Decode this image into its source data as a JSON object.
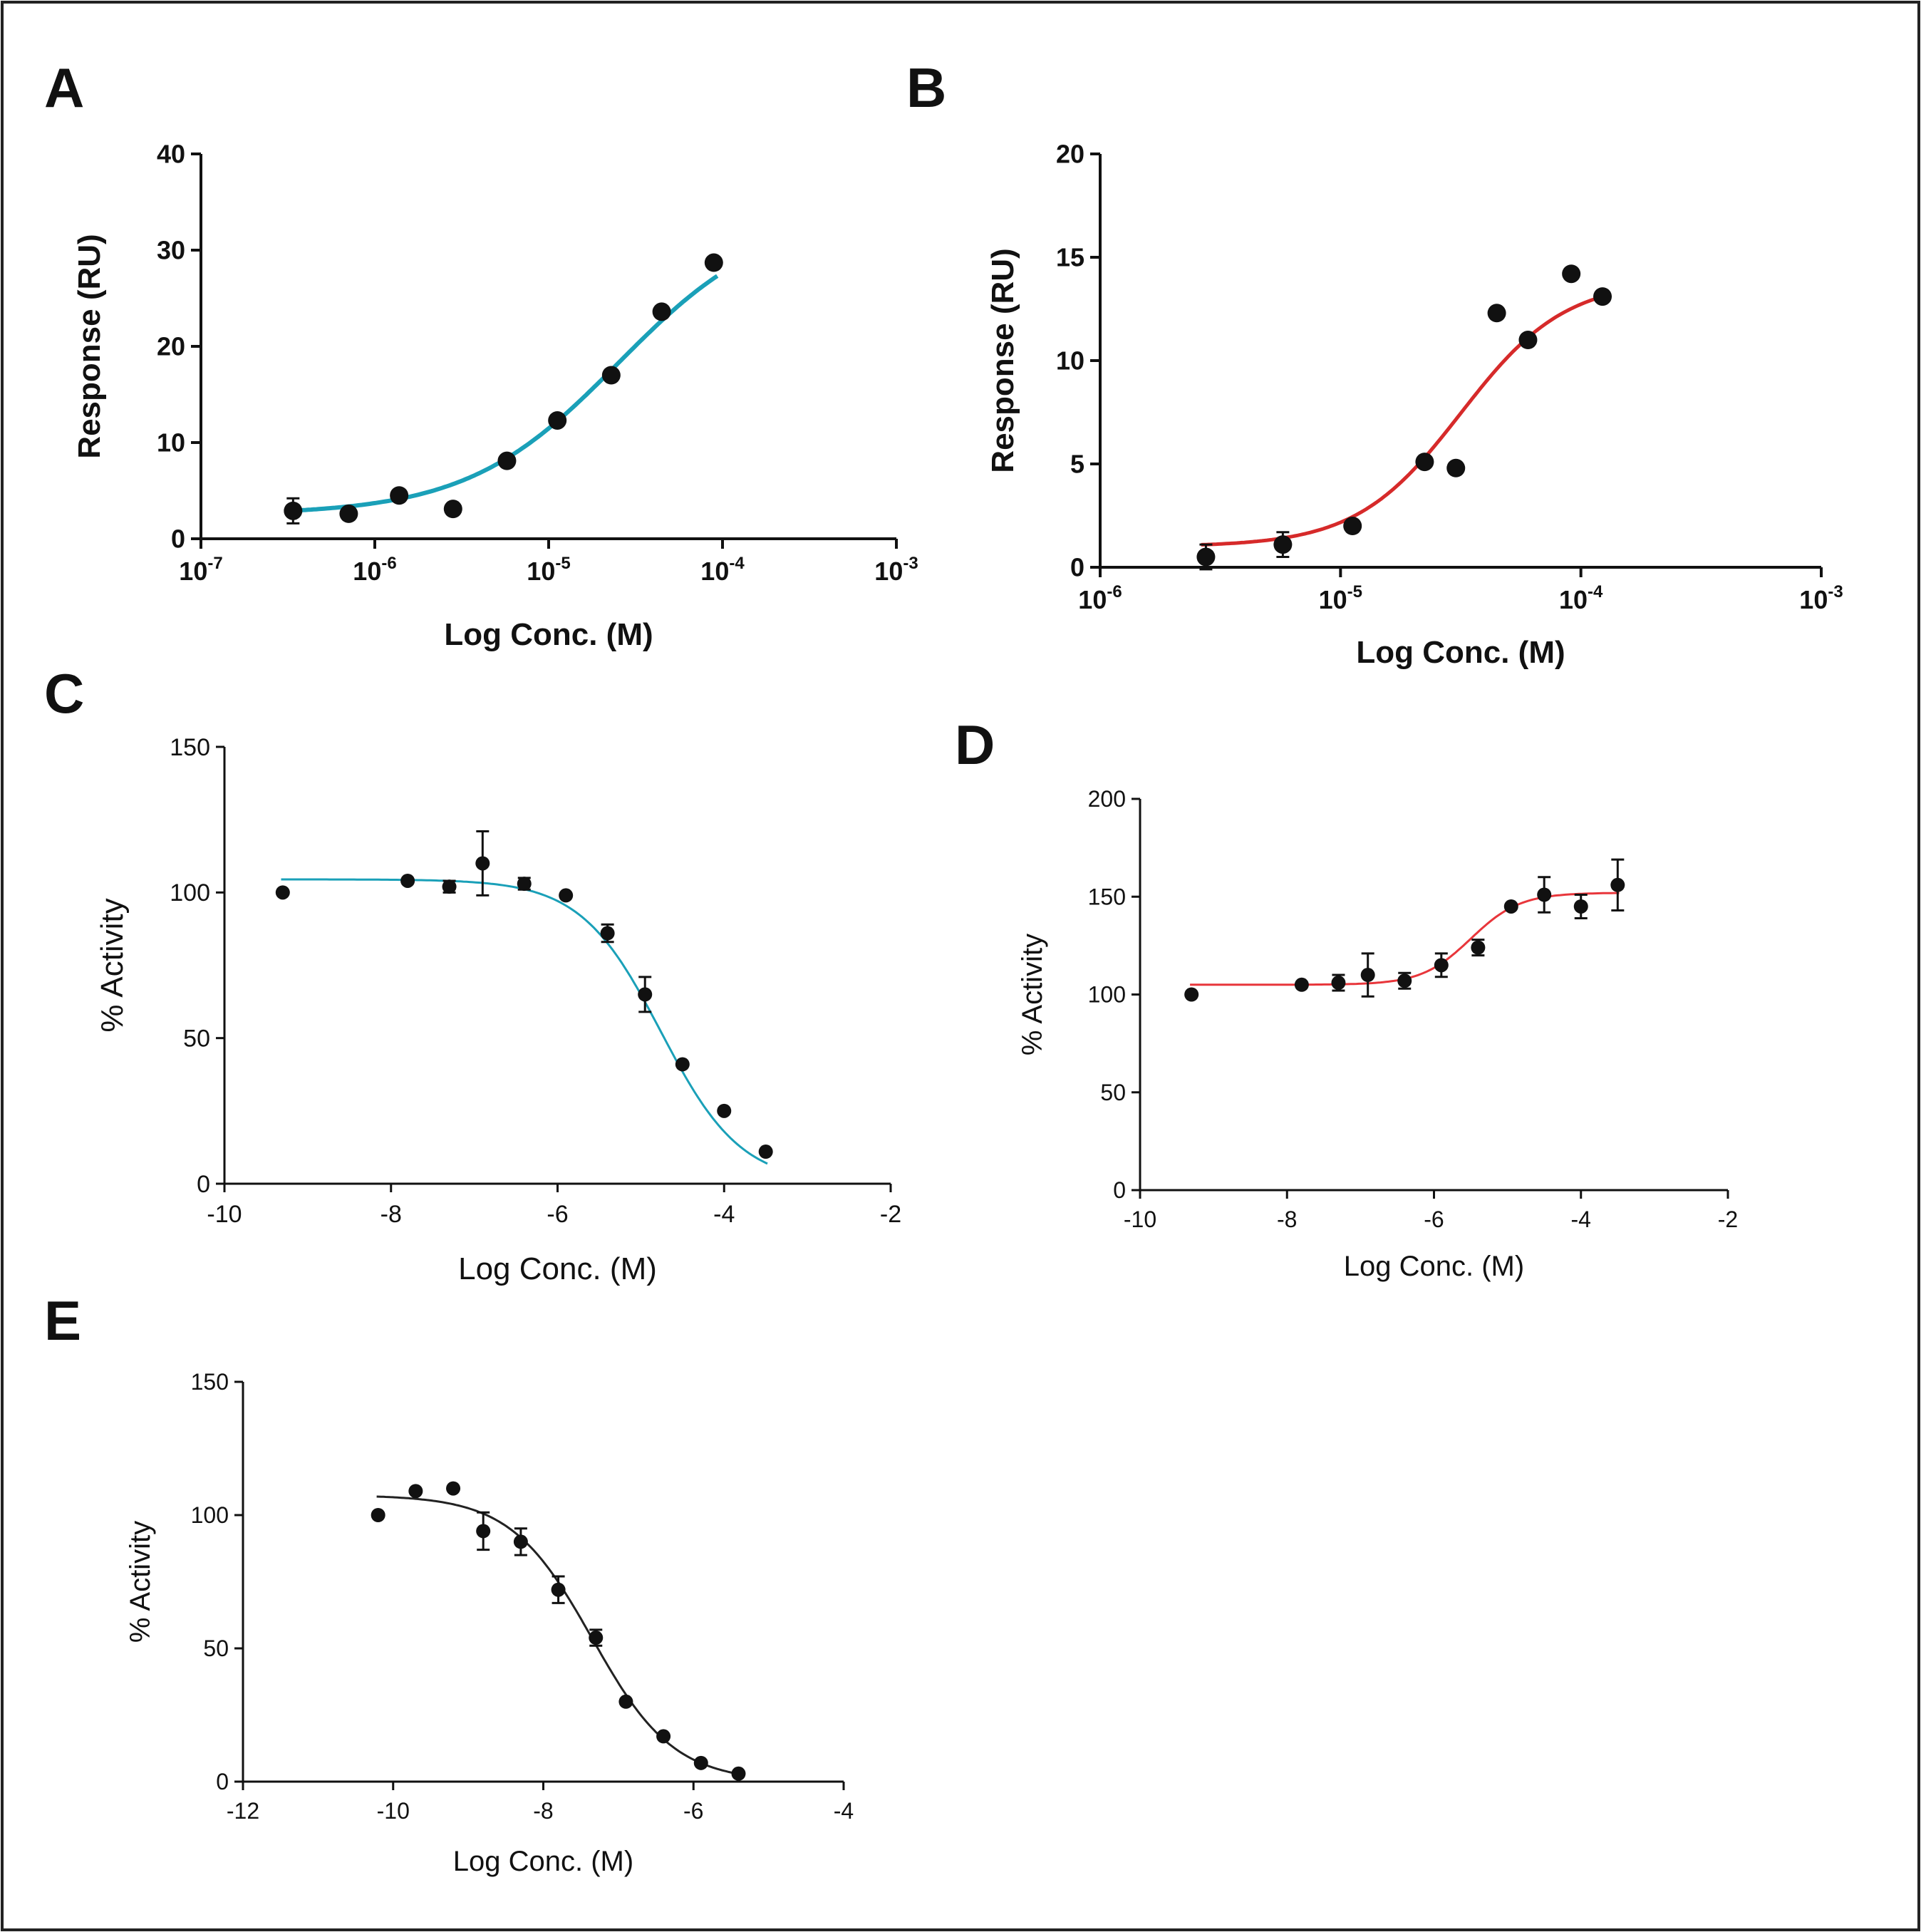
{
  "chart_data": [
    {
      "panel": "A",
      "type": "scatter",
      "xscale": "log",
      "xlim_log10": [
        -7,
        -3
      ],
      "ylim": [
        0,
        40
      ],
      "xlabel": "Log Conc. (M)",
      "ylabel": "Response  (RU)",
      "yticks": [
        0,
        10,
        20,
        30,
        40
      ],
      "xticks": [
        {
          "base": "10",
          "exp": "-7"
        },
        {
          "base": "10",
          "exp": "-6"
        },
        {
          "base": "10",
          "exp": "-5"
        },
        {
          "base": "10",
          "exp": "-4"
        },
        {
          "base": "10",
          "exp": "-3"
        }
      ],
      "curve_color": "#1aa0b8",
      "fit": {
        "bottom": 2.5,
        "top": 34.0,
        "logEC50": -4.6,
        "hill": 1.0
      },
      "points": [
        {
          "x": -6.47,
          "y": 2.9,
          "err": 1.3
        },
        {
          "x": -6.15,
          "y": 2.6,
          "err": 0
        },
        {
          "x": -5.86,
          "y": 4.5,
          "err": 0
        },
        {
          "x": -5.55,
          "y": 3.1,
          "err": 0
        },
        {
          "x": -5.24,
          "y": 8.1,
          "err": 0
        },
        {
          "x": -4.95,
          "y": 12.3,
          "err": 0
        },
        {
          "x": -4.64,
          "y": 17.0,
          "err": 0
        },
        {
          "x": -4.35,
          "y": 23.6,
          "err": 0
        },
        {
          "x": -4.05,
          "y": 28.7,
          "err": 0
        }
      ]
    },
    {
      "panel": "B",
      "type": "scatter",
      "xscale": "log",
      "xlim_log10": [
        -6,
        -3
      ],
      "ylim": [
        0,
        20
      ],
      "xlabel": "Log Conc. (M)",
      "ylabel": "Response  (RU)",
      "yticks": [
        0,
        5,
        10,
        15,
        20
      ],
      "xticks": [
        {
          "base": "10",
          "exp": "-6"
        },
        {
          "base": "10",
          "exp": "-5"
        },
        {
          "base": "10",
          "exp": "-4"
        },
        {
          "base": "10",
          "exp": "-3"
        }
      ],
      "curve_color": "#d62a2a",
      "fit": {
        "bottom": 1.0,
        "top": 13.9,
        "logEC50": -4.5,
        "hill": 2.0
      },
      "points": [
        {
          "x": -5.56,
          "y": 0.5,
          "err": 0.6
        },
        {
          "x": -5.24,
          "y": 1.1,
          "err": 0.6
        },
        {
          "x": -4.95,
          "y": 2.0,
          "err": 0
        },
        {
          "x": -4.65,
          "y": 5.1,
          "err": 0
        },
        {
          "x": -4.52,
          "y": 4.8,
          "err": 0
        },
        {
          "x": -4.35,
          "y": 12.3,
          "err": 0
        },
        {
          "x": -4.22,
          "y": 11.0,
          "err": 0
        },
        {
          "x": -4.04,
          "y": 14.2,
          "err": 0
        },
        {
          "x": -3.91,
          "y": 13.1,
          "err": 0
        }
      ]
    },
    {
      "panel": "C",
      "type": "scatter",
      "xscale": "linear",
      "xlim": [
        -10,
        -2
      ],
      "ylim": [
        0,
        150
      ],
      "xlabel": "Log Conc. (M)",
      "ylabel": "% Activity",
      "yticks": [
        0,
        50,
        100,
        150
      ],
      "xticks": [
        -10,
        -8,
        -6,
        -4,
        -2
      ],
      "curve_color": "#1aa0b8",
      "fit": {
        "bottom": 0,
        "top": 104.5,
        "logEC50": -4.76,
        "hill": -0.9
      },
      "points": [
        {
          "x": -9.3,
          "y": 100,
          "err": 0
        },
        {
          "x": -7.8,
          "y": 104,
          "err": 0
        },
        {
          "x": -7.3,
          "y": 102,
          "err": 2
        },
        {
          "x": -6.9,
          "y": 110,
          "err": 11
        },
        {
          "x": -6.4,
          "y": 103,
          "err": 2
        },
        {
          "x": -5.9,
          "y": 99,
          "err": 0
        },
        {
          "x": -5.4,
          "y": 86,
          "err": 3
        },
        {
          "x": -4.95,
          "y": 65,
          "err": 6
        },
        {
          "x": -4.5,
          "y": 41,
          "err": 0
        },
        {
          "x": -4.0,
          "y": 25,
          "err": 0
        },
        {
          "x": -3.5,
          "y": 11,
          "err": 0
        }
      ]
    },
    {
      "panel": "D",
      "type": "scatter",
      "xscale": "linear",
      "xlim": [
        -10,
        -2
      ],
      "ylim": [
        0,
        200
      ],
      "xlabel": "Log Conc. (M)",
      "ylabel": "% Activity",
      "yticks": [
        0,
        50,
        100,
        150,
        200
      ],
      "xticks": [
        -10,
        -8,
        -6,
        -4,
        -2
      ],
      "curve_color": "#e8363b",
      "fit": {
        "bottom": 105,
        "top": 152,
        "logEC50": -5.5,
        "hill": 1.3
      },
      "points": [
        {
          "x": -9.3,
          "y": 100,
          "err": 0
        },
        {
          "x": -7.8,
          "y": 105,
          "err": 0
        },
        {
          "x": -7.3,
          "y": 106,
          "err": 4
        },
        {
          "x": -6.9,
          "y": 110,
          "err": 11
        },
        {
          "x": -6.4,
          "y": 107,
          "err": 4
        },
        {
          "x": -5.9,
          "y": 115,
          "err": 6
        },
        {
          "x": -5.4,
          "y": 124,
          "err": 4
        },
        {
          "x": -4.95,
          "y": 145,
          "err": 0
        },
        {
          "x": -4.5,
          "y": 151,
          "err": 9
        },
        {
          "x": -4.0,
          "y": 145,
          "err": 6
        },
        {
          "x": -3.5,
          "y": 156,
          "err": 13
        }
      ]
    },
    {
      "panel": "E",
      "type": "scatter",
      "xscale": "linear",
      "xlim": [
        -12,
        -4
      ],
      "ylim": [
        0,
        150
      ],
      "xlabel": "Log Conc. (M)",
      "ylabel": "% Activity",
      "yticks": [
        0,
        50,
        100,
        150
      ],
      "xticks": [
        -12,
        -10,
        -8,
        -6,
        -4
      ],
      "curve_color": "#222222",
      "fit": {
        "bottom": 0,
        "top": 107.5,
        "logEC50": -7.35,
        "hill": -0.8
      },
      "points": [
        {
          "x": -10.2,
          "y": 100,
          "err": 0
        },
        {
          "x": -9.7,
          "y": 109,
          "err": 0
        },
        {
          "x": -9.2,
          "y": 110,
          "err": 0
        },
        {
          "x": -8.8,
          "y": 94,
          "err": 7
        },
        {
          "x": -8.3,
          "y": 90,
          "err": 5
        },
        {
          "x": -7.8,
          "y": 72,
          "err": 5
        },
        {
          "x": -7.3,
          "y": 54,
          "err": 3
        },
        {
          "x": -6.9,
          "y": 30,
          "err": 0
        },
        {
          "x": -6.4,
          "y": 17,
          "err": 0
        },
        {
          "x": -5.9,
          "y": 7,
          "err": 0
        },
        {
          "x": -5.4,
          "y": 3,
          "err": 0
        }
      ]
    }
  ]
}
